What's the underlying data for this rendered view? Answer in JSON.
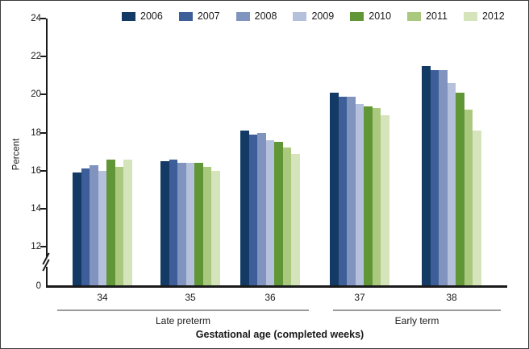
{
  "legend": {
    "items": [
      {
        "year": "2006",
        "color": "#123a65"
      },
      {
        "year": "2007",
        "color": "#3d5e99"
      },
      {
        "year": "2008",
        "color": "#8094bf"
      },
      {
        "year": "2009",
        "color": "#b5c0dc"
      },
      {
        "year": "2010",
        "color": "#609636"
      },
      {
        "year": "2011",
        "color": "#aac97e"
      },
      {
        "year": "2012",
        "color": "#d5e4ba"
      }
    ]
  },
  "y_axis": {
    "label": "Percent",
    "ticks": [
      "24",
      "22",
      "20",
      "18",
      "16",
      "14",
      "12"
    ],
    "zero_label": "0",
    "has_axis_break": true
  },
  "x_axis": {
    "title": "Gestational age (completed weeks)",
    "week_labels": [
      "34",
      "35",
      "36",
      "37",
      "38"
    ],
    "group_brackets": [
      {
        "label": "Late preterm"
      },
      {
        "label": "Early term"
      }
    ]
  },
  "chart_data": {
    "type": "bar",
    "title": "",
    "xlabel": "Gestational age (completed weeks)",
    "ylabel": "Percent",
    "ylim": [
      0,
      24
    ],
    "y_break_between": [
      0,
      12
    ],
    "grid": false,
    "legend_position": "top",
    "categories": [
      "34",
      "35",
      "36",
      "37",
      "38"
    ],
    "category_groups": [
      {
        "label": "Late preterm",
        "categories": [
          "34",
          "35",
          "36"
        ]
      },
      {
        "label": "Early term",
        "categories": [
          "37",
          "38"
        ]
      }
    ],
    "series": [
      {
        "name": "2006",
        "color": "#123a65",
        "values": [
          15.9,
          16.5,
          18.1,
          20.1,
          21.5
        ]
      },
      {
        "name": "2007",
        "color": "#3d5e99",
        "values": [
          16.1,
          16.6,
          17.9,
          19.9,
          21.3
        ]
      },
      {
        "name": "2008",
        "color": "#8094bf",
        "values": [
          16.3,
          16.4,
          18.0,
          19.9,
          21.3
        ]
      },
      {
        "name": "2009",
        "color": "#b5c0dc",
        "values": [
          16.0,
          16.4,
          17.6,
          19.5,
          20.6
        ]
      },
      {
        "name": "2010",
        "color": "#609636",
        "values": [
          16.6,
          16.4,
          17.5,
          19.4,
          20.1
        ]
      },
      {
        "name": "2011",
        "color": "#aac97e",
        "values": [
          16.2,
          16.2,
          17.2,
          19.3,
          19.2
        ]
      },
      {
        "name": "2012",
        "color": "#d5e4ba",
        "values": [
          16.6,
          16.0,
          16.9,
          18.9,
          18.1
        ]
      }
    ]
  }
}
